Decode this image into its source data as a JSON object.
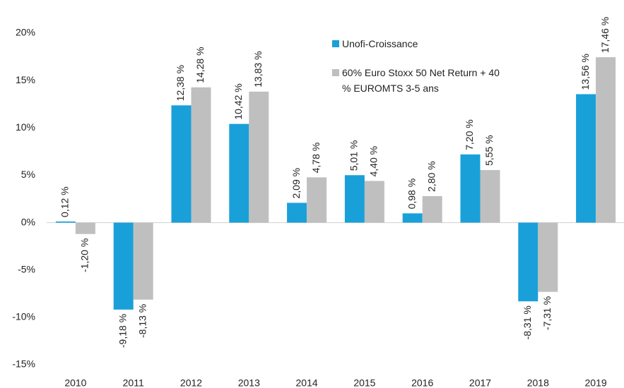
{
  "chart_data": {
    "type": "bar",
    "categories": [
      "2010",
      "2011",
      "2012",
      "2013",
      "2014",
      "2015",
      "2016",
      "2017",
      "2018",
      "2019"
    ],
    "series": [
      {
        "name": "Unofi-Croissance",
        "color": "#1aa0d8",
        "values": [
          0.12,
          -9.18,
          12.38,
          10.42,
          2.09,
          5.01,
          0.98,
          7.2,
          -8.31,
          13.56
        ],
        "value_labels": [
          "0,12 %",
          "-9,18 %",
          "12,38 %",
          "10,42 %",
          "2,09 %",
          "5,01 %",
          "0,98 %",
          "7,20 %",
          "-8,31 %",
          "13,56 %"
        ]
      },
      {
        "name": "60% Euro Stoxx 50 Net Return + 40  % EUROMTS 3-5 ans",
        "color": "#bfbfbf",
        "values": [
          -1.2,
          -8.13,
          14.28,
          13.83,
          4.78,
          4.4,
          2.8,
          5.55,
          -7.31,
          17.46
        ],
        "value_labels": [
          "-1,20 %",
          "-8,13 %",
          "14,28 %",
          "13,83 %",
          "4,78 %",
          "4,40 %",
          "2,80 %",
          "5,55 %",
          "-7,31 %",
          "17,46 %"
        ]
      }
    ],
    "ylim": [
      -15,
      20
    ],
    "yticks": [
      {
        "value": -15,
        "label": "-15%"
      },
      {
        "value": -10,
        "label": "-10%"
      },
      {
        "value": -5,
        "label": "-5%"
      },
      {
        "value": 0,
        "label": "0%"
      },
      {
        "value": 5,
        "label": "5%"
      },
      {
        "value": 10,
        "label": "10%"
      },
      {
        "value": 15,
        "label": "15%"
      },
      {
        "value": 20,
        "label": "20%"
      }
    ],
    "grid": false
  }
}
